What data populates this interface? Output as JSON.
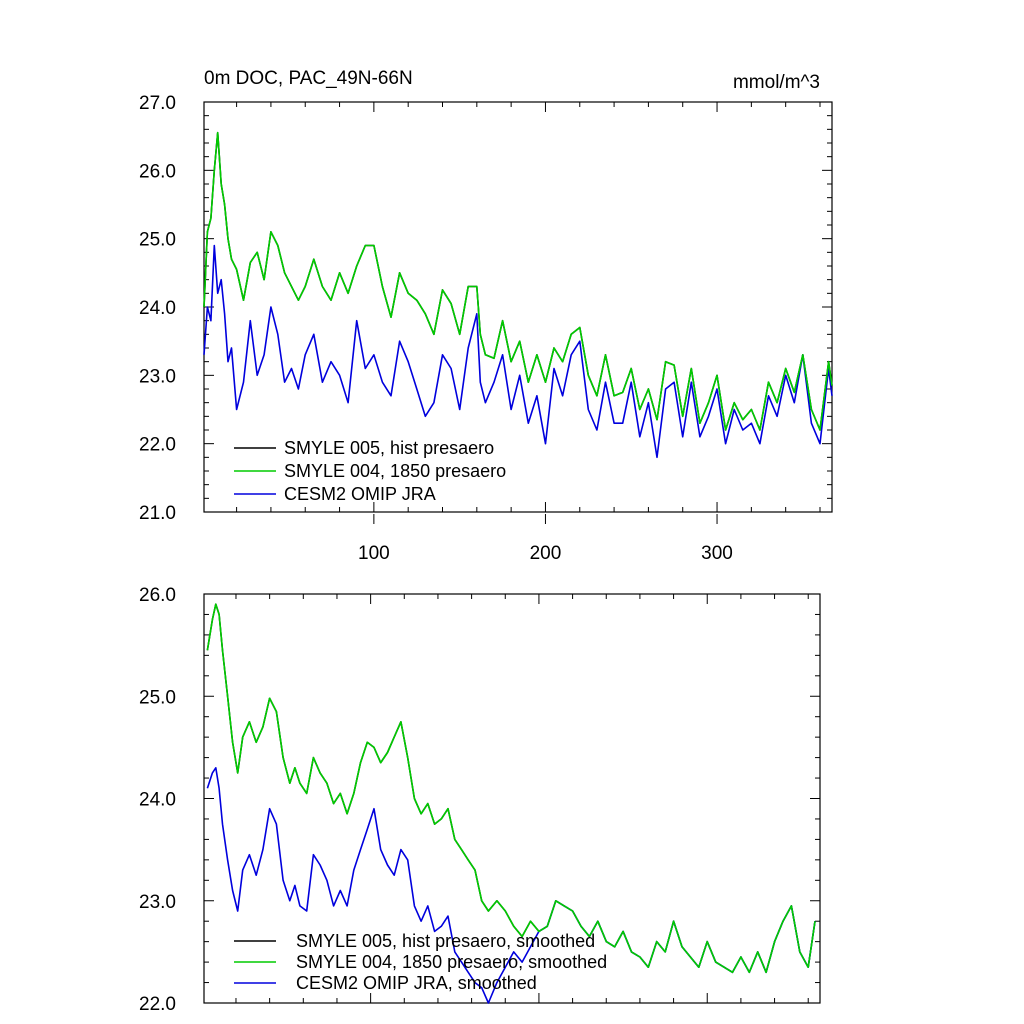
{
  "chart_data": [
    {
      "type": "line",
      "title": "0m DOC, PAC_49N-66N",
      "units": "mmol/m^3",
      "xlim": [
        1,
        367
      ],
      "ylim": [
        21.0,
        27.0
      ],
      "x_ticks": [
        100,
        200,
        300
      ],
      "y_ticks": [
        "21.0",
        "22.0",
        "23.0",
        "24.0",
        "25.0",
        "26.0",
        "27.0"
      ],
      "legend_position": "bottom-left",
      "series": [
        {
          "name": "SMYLE 005, hist presaero",
          "color": "#000000",
          "x": [
            1,
            3,
            5,
            7,
            9,
            11,
            13,
            15,
            17,
            20,
            24,
            28,
            32,
            36,
            40,
            44,
            48,
            52,
            56,
            60,
            65,
            70,
            75,
            80,
            85,
            90,
            95,
            100,
            105,
            110,
            115,
            120,
            125,
            130,
            135,
            140,
            145,
            150,
            155,
            160,
            162,
            165,
            170,
            175,
            180,
            185,
            190,
            195,
            200,
            205,
            210,
            215,
            220,
            225,
            230,
            235,
            240,
            245,
            250,
            255,
            260,
            265,
            270,
            275,
            280,
            285,
            290,
            295,
            300,
            305,
            310,
            315,
            320,
            325,
            330,
            335,
            340,
            345,
            350,
            355,
            360,
            365,
            367
          ],
          "values": [
            24.0,
            25.1,
            25.3,
            26.0,
            26.55,
            25.8,
            25.5,
            25.0,
            24.7,
            24.55,
            24.1,
            24.65,
            24.8,
            24.4,
            25.1,
            24.9,
            24.5,
            24.3,
            24.1,
            24.3,
            24.7,
            24.3,
            24.1,
            24.5,
            24.2,
            24.6,
            24.9,
            24.9,
            24.3,
            23.85,
            24.5,
            24.2,
            24.1,
            23.9,
            23.6,
            24.25,
            24.05,
            23.6,
            24.3,
            24.3,
            23.6,
            23.3,
            23.25,
            23.8,
            23.2,
            23.5,
            22.9,
            23.3,
            22.9,
            23.4,
            23.2,
            23.6,
            23.7,
            23.0,
            22.7,
            23.3,
            22.7,
            22.75,
            23.1,
            22.5,
            22.8,
            22.35,
            23.2,
            23.15,
            22.4,
            23.1,
            22.3,
            22.6,
            23.0,
            22.2,
            22.6,
            22.35,
            22.5,
            22.2,
            22.9,
            22.6,
            23.1,
            22.75,
            23.3,
            22.5,
            22.2,
            23.2,
            22.85
          ]
        },
        {
          "name": "SMYLE 004, 1850 presaero",
          "color": "#00cc00",
          "x": [
            1,
            3,
            5,
            7,
            9,
            11,
            13,
            15,
            17,
            20,
            24,
            28,
            32,
            36,
            40,
            44,
            48,
            52,
            56,
            60,
            65,
            70,
            75,
            80,
            85,
            90,
            95,
            100,
            105,
            110,
            115,
            120,
            125,
            130,
            135,
            140,
            145,
            150,
            155,
            160,
            162,
            165,
            170,
            175,
            180,
            185,
            190,
            195,
            200,
            205,
            210,
            215,
            220,
            225,
            230,
            235,
            240,
            245,
            250,
            255,
            260,
            265,
            270,
            275,
            280,
            285,
            290,
            295,
            300,
            305,
            310,
            315,
            320,
            325,
            330,
            335,
            340,
            345,
            350,
            355,
            360,
            365,
            367
          ],
          "values": [
            24.0,
            25.1,
            25.3,
            26.0,
            26.55,
            25.8,
            25.5,
            25.0,
            24.7,
            24.55,
            24.1,
            24.65,
            24.8,
            24.4,
            25.1,
            24.9,
            24.5,
            24.3,
            24.1,
            24.3,
            24.7,
            24.3,
            24.1,
            24.5,
            24.2,
            24.6,
            24.9,
            24.9,
            24.3,
            23.85,
            24.5,
            24.2,
            24.1,
            23.9,
            23.6,
            24.25,
            24.05,
            23.6,
            24.3,
            24.3,
            23.6,
            23.3,
            23.25,
            23.8,
            23.2,
            23.5,
            22.9,
            23.3,
            22.9,
            23.4,
            23.2,
            23.6,
            23.7,
            23.0,
            22.7,
            23.3,
            22.7,
            22.75,
            23.1,
            22.5,
            22.8,
            22.35,
            23.2,
            23.15,
            22.4,
            23.1,
            22.3,
            22.6,
            23.0,
            22.2,
            22.6,
            22.35,
            22.5,
            22.2,
            22.9,
            22.6,
            23.1,
            22.75,
            23.3,
            22.5,
            22.2,
            23.2,
            22.85
          ]
        },
        {
          "name": "CESM2 OMIP JRA",
          "color": "#0000dd",
          "x": [
            1,
            3,
            5,
            7,
            9,
            11,
            13,
            15,
            17,
            20,
            24,
            28,
            32,
            36,
            40,
            44,
            48,
            52,
            56,
            60,
            65,
            70,
            75,
            80,
            85,
            90,
            95,
            100,
            105,
            110,
            115,
            120,
            125,
            130,
            135,
            140,
            145,
            150,
            155,
            160,
            162,
            165,
            170,
            175,
            180,
            185,
            190,
            195,
            200,
            205,
            210,
            215,
            220,
            225,
            230,
            235,
            240,
            245,
            250,
            255,
            260,
            265,
            270,
            275,
            280,
            285,
            290,
            295,
            300,
            305,
            310,
            315,
            320,
            325,
            330,
            335,
            340,
            345,
            350,
            355,
            360,
            365,
            367
          ],
          "values": [
            23.3,
            24.0,
            23.8,
            24.9,
            24.2,
            24.4,
            23.9,
            23.2,
            23.4,
            22.5,
            22.9,
            23.8,
            23.0,
            23.3,
            24.0,
            23.6,
            22.9,
            23.1,
            22.8,
            23.3,
            23.6,
            22.9,
            23.2,
            23.0,
            22.6,
            23.8,
            23.1,
            23.3,
            22.9,
            22.7,
            23.5,
            23.2,
            22.8,
            22.4,
            22.6,
            23.3,
            23.1,
            22.5,
            23.4,
            23.9,
            22.9,
            22.6,
            22.9,
            23.3,
            22.5,
            23.0,
            22.3,
            22.7,
            22.0,
            23.1,
            22.7,
            23.3,
            23.5,
            22.5,
            22.2,
            22.9,
            22.3,
            22.3,
            22.9,
            22.1,
            22.6,
            21.8,
            22.8,
            22.9,
            22.1,
            22.9,
            22.1,
            22.4,
            22.8,
            22.0,
            22.5,
            22.2,
            22.3,
            22.0,
            22.7,
            22.4,
            23.0,
            22.6,
            23.3,
            22.3,
            22.0,
            23.1,
            22.7
          ]
        }
      ]
    },
    {
      "type": "line",
      "xlim": [
        1,
        367
      ],
      "ylim": [
        22.0,
        26.0
      ],
      "y_ticks": [
        "22.0",
        "23.0",
        "24.0",
        "25.0",
        "26.0"
      ],
      "legend_position": "bottom-left",
      "series": [
        {
          "name": "SMYLE 005, hist presaero, smoothed",
          "color": "#000000",
          "x": [
            3,
            6,
            8,
            10,
            12,
            15,
            18,
            21,
            24,
            28,
            32,
            36,
            40,
            44,
            48,
            52,
            55,
            58,
            62,
            66,
            70,
            74,
            78,
            82,
            86,
            90,
            94,
            98,
            102,
            106,
            110,
            114,
            118,
            122,
            126,
            130,
            134,
            138,
            142,
            146,
            150,
            154,
            158,
            162,
            166,
            170,
            175,
            180,
            185,
            190,
            195,
            200,
            205,
            210,
            215,
            220,
            225,
            230,
            235,
            240,
            245,
            250,
            255,
            260,
            265,
            270,
            275,
            280,
            285,
            290,
            295,
            300,
            305,
            310,
            315,
            320,
            325,
            330,
            335,
            340,
            345,
            350,
            355,
            360,
            364
          ],
          "values": [
            25.45,
            25.75,
            25.9,
            25.8,
            25.45,
            25.0,
            24.55,
            24.25,
            24.6,
            24.75,
            24.55,
            24.7,
            24.98,
            24.85,
            24.4,
            24.15,
            24.3,
            24.15,
            24.05,
            24.4,
            24.25,
            24.15,
            23.95,
            24.05,
            23.85,
            24.05,
            24.35,
            24.55,
            24.5,
            24.35,
            24.45,
            24.6,
            24.75,
            24.4,
            24.0,
            23.85,
            23.95,
            23.75,
            23.8,
            23.9,
            23.6,
            23.5,
            23.4,
            23.3,
            23.0,
            22.9,
            23.0,
            22.9,
            22.75,
            22.65,
            22.8,
            22.7,
            22.75,
            23.0,
            22.95,
            22.9,
            22.75,
            22.65,
            22.8,
            22.6,
            22.55,
            22.7,
            22.5,
            22.45,
            22.35,
            22.6,
            22.5,
            22.8,
            22.55,
            22.45,
            22.35,
            22.6,
            22.4,
            22.35,
            22.3,
            22.45,
            22.3,
            22.5,
            22.3,
            22.6,
            22.8,
            22.95,
            22.5,
            22.35,
            22.8
          ]
        },
        {
          "name": "SMYLE 004, 1850 presaero, smoothed",
          "color": "#00cc00",
          "x": [
            3,
            6,
            8,
            10,
            12,
            15,
            18,
            21,
            24,
            28,
            32,
            36,
            40,
            44,
            48,
            52,
            55,
            58,
            62,
            66,
            70,
            74,
            78,
            82,
            86,
            90,
            94,
            98,
            102,
            106,
            110,
            114,
            118,
            122,
            126,
            130,
            134,
            138,
            142,
            146,
            150,
            154,
            158,
            162,
            166,
            170,
            175,
            180,
            185,
            190,
            195,
            200,
            205,
            210,
            215,
            220,
            225,
            230,
            235,
            240,
            245,
            250,
            255,
            260,
            265,
            270,
            275,
            280,
            285,
            290,
            295,
            300,
            305,
            310,
            315,
            320,
            325,
            330,
            335,
            340,
            345,
            350,
            355,
            360,
            364
          ],
          "values": [
            25.45,
            25.75,
            25.9,
            25.8,
            25.45,
            25.0,
            24.55,
            24.25,
            24.6,
            24.75,
            24.55,
            24.7,
            24.98,
            24.85,
            24.4,
            24.15,
            24.3,
            24.15,
            24.05,
            24.4,
            24.25,
            24.15,
            23.95,
            24.05,
            23.85,
            24.05,
            24.35,
            24.55,
            24.5,
            24.35,
            24.45,
            24.6,
            24.75,
            24.4,
            24.0,
            23.85,
            23.95,
            23.75,
            23.8,
            23.9,
            23.6,
            23.5,
            23.4,
            23.3,
            23.0,
            22.9,
            23.0,
            22.9,
            22.75,
            22.65,
            22.8,
            22.7,
            22.75,
            23.0,
            22.95,
            22.9,
            22.75,
            22.65,
            22.8,
            22.6,
            22.55,
            22.7,
            22.5,
            22.45,
            22.35,
            22.6,
            22.5,
            22.8,
            22.55,
            22.45,
            22.35,
            22.6,
            22.4,
            22.35,
            22.3,
            22.45,
            22.3,
            22.5,
            22.3,
            22.6,
            22.8,
            22.95,
            22.5,
            22.35,
            22.8
          ]
        },
        {
          "name": "CESM2 OMIP JRA, smoothed",
          "color": "#0000dd",
          "x": [
            3,
            6,
            8,
            10,
            12,
            15,
            18,
            21,
            24,
            28,
            32,
            36,
            40,
            44,
            48,
            52,
            55,
            58,
            62,
            66,
            70,
            74,
            78,
            82,
            86,
            90,
            94,
            98,
            102,
            106,
            110,
            114,
            118,
            122,
            126,
            130,
            134,
            138,
            142,
            146,
            150,
            154,
            158,
            162,
            166,
            170,
            175,
            180,
            185,
            190,
            195,
            200,
            205,
            210,
            215,
            220,
            225,
            230,
            235,
            240,
            245,
            250,
            255,
            260,
            265,
            270,
            275,
            280,
            285,
            290,
            295,
            300,
            305,
            310,
            315,
            320,
            325,
            330,
            335,
            340,
            345,
            350,
            355,
            360,
            364
          ],
          "values": [
            24.1,
            24.25,
            24.3,
            24.1,
            23.75,
            23.4,
            23.1,
            22.9,
            23.3,
            23.45,
            23.25,
            23.5,
            23.9,
            23.75,
            23.2,
            23.0,
            23.15,
            22.95,
            22.9,
            23.45,
            23.35,
            23.2,
            22.95,
            23.1,
            22.95,
            23.3,
            23.5,
            23.7,
            23.9,
            23.5,
            23.35,
            23.25,
            23.5,
            23.4,
            22.95,
            22.8,
            22.95,
            22.7,
            22.75,
            22.85,
            22.5,
            22.4,
            22.3,
            22.2,
            22.15,
            22.0,
            22.2,
            22.35,
            22.5,
            22.4,
            22.55,
            22.7,
            22.75,
            23.0,
            22.95,
            22.9,
            22.75,
            22.65,
            22.8,
            22.6,
            22.55,
            22.7,
            22.5,
            22.45,
            22.35,
            22.6,
            22.5,
            22.8,
            22.55,
            22.45,
            22.35,
            22.6,
            22.4,
            22.35,
            22.3,
            22.45,
            22.3,
            22.5,
            22.3,
            22.6,
            22.8,
            22.95,
            22.5,
            22.35,
            22.8
          ]
        }
      ]
    }
  ]
}
